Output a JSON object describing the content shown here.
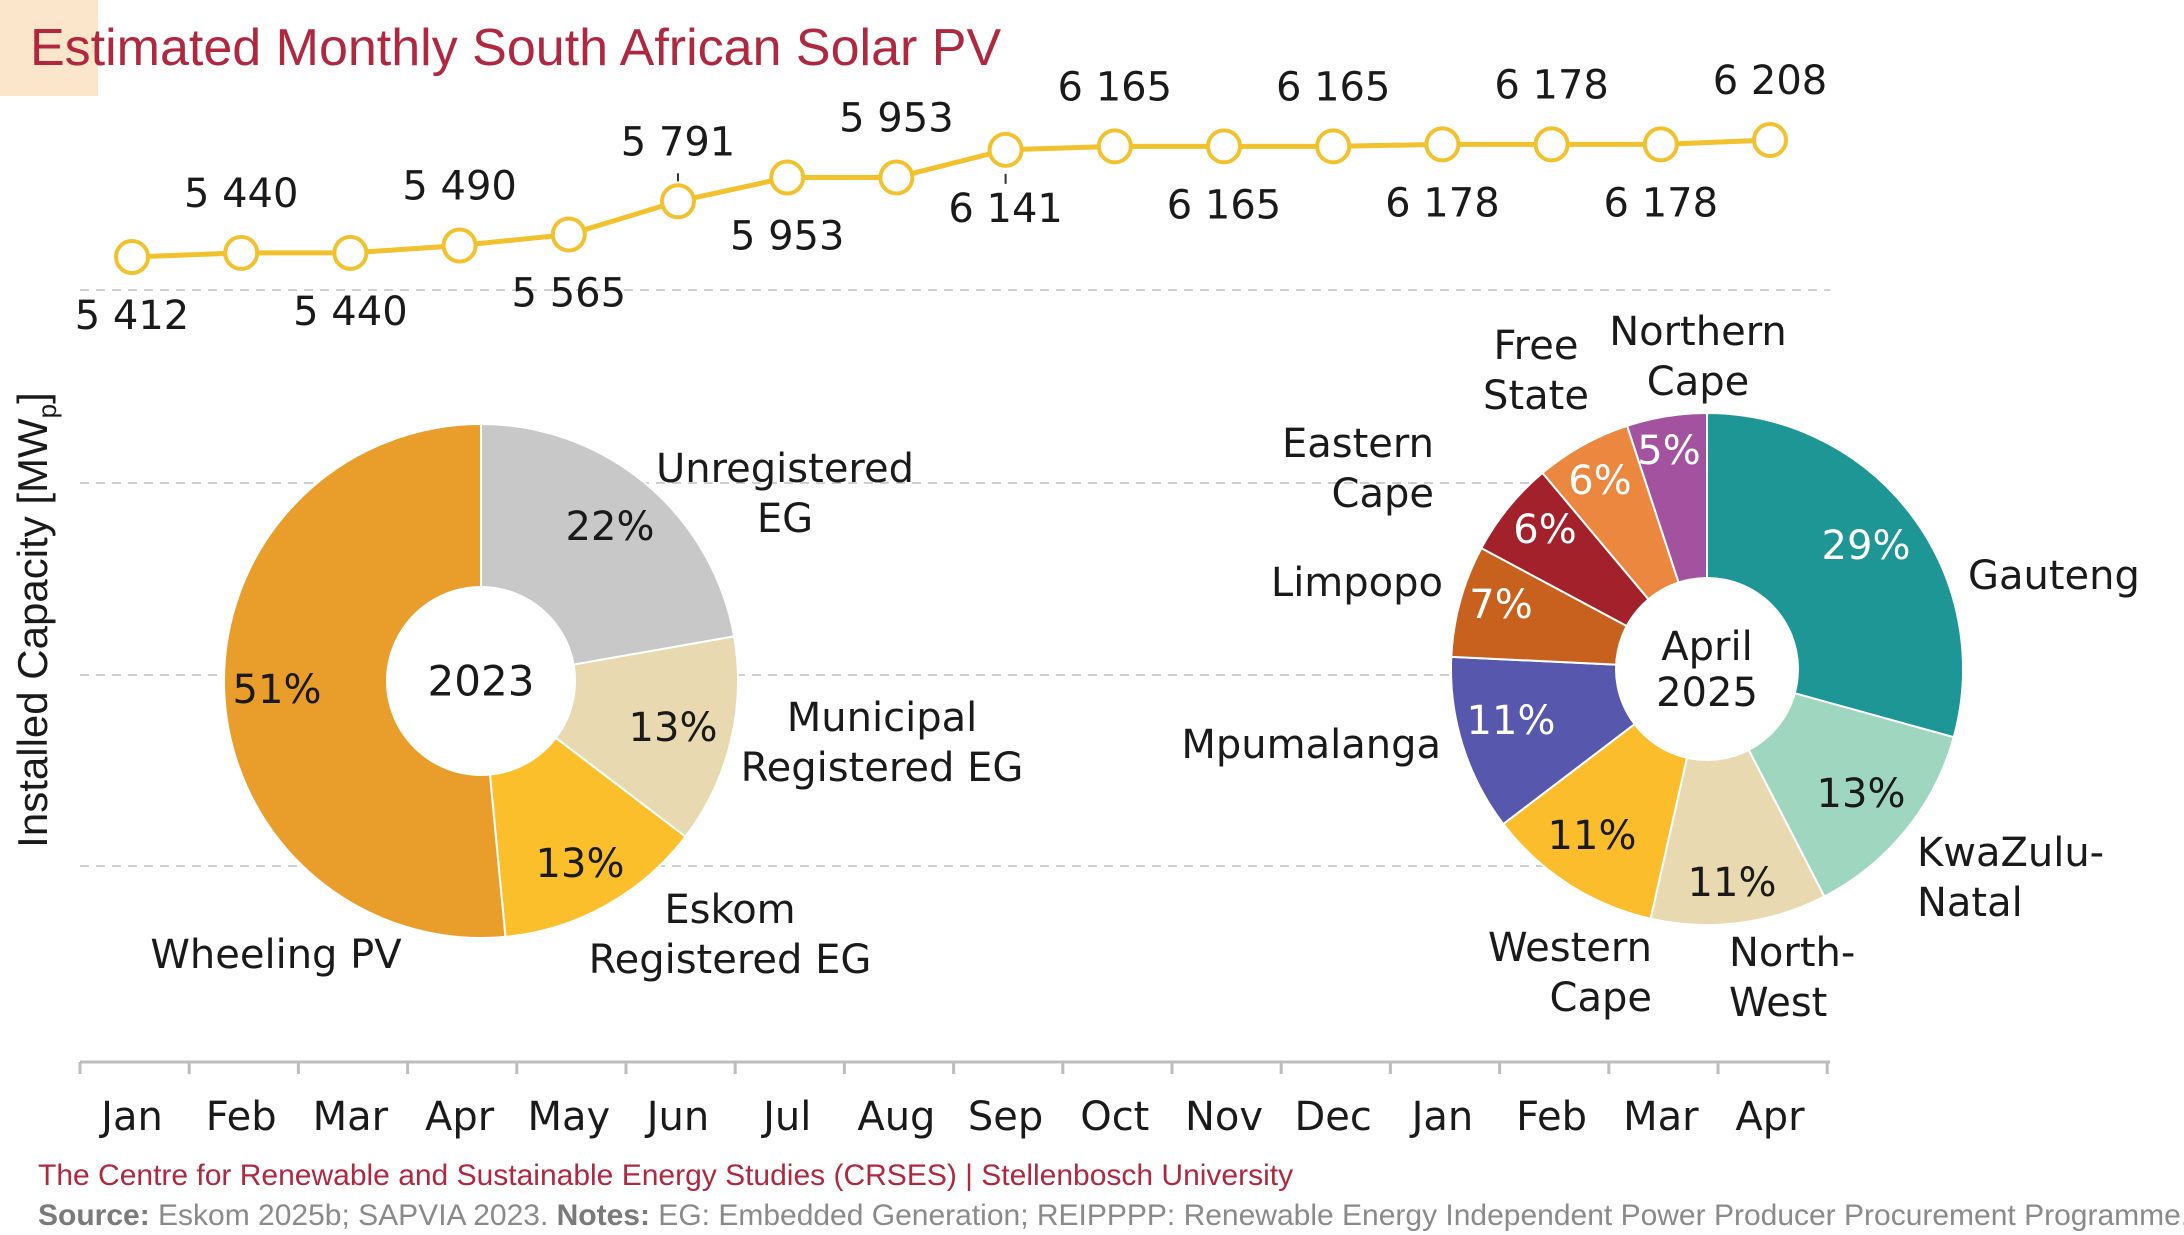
{
  "title": "Estimated Monthly South African Solar PV",
  "ylabel_main": "Installed Capacity [MW",
  "ylabel_sub": "p",
  "ylabel_end": "]",
  "footer": {
    "org": "The Centre for Renewable and Sustainable Energy Studies (CRSES) | Stellenbosch University",
    "source_label": "Source:",
    "source_text": " Eskom 2025b; SAPVIA 2023. ",
    "notes_label": "Notes:",
    "notes_text": " EG: Embedded Generation; REIPPPP: Renewable Energy Independent Power Producer Procurement Programme."
  },
  "chart_data": [
    {
      "type": "line",
      "categories": [
        "Jan",
        "Feb",
        "Mar",
        "Apr",
        "May",
        "Jun",
        "Jul",
        "Aug",
        "Sep",
        "Oct",
        "Nov",
        "Dec",
        "Jan",
        "Feb",
        "Mar",
        "Apr"
      ],
      "values": [
        5412,
        5440,
        5440,
        5490,
        5565,
        5791,
        5953,
        5953,
        6141,
        6165,
        6165,
        6165,
        6178,
        6178,
        6178,
        6208
      ],
      "data_labels": [
        "5 412",
        "5 440",
        "5 440",
        "5 490",
        "5 565",
        "5 791",
        "5 953",
        "5 953",
        "6 141",
        "6 165",
        "6 165",
        "6 165",
        "6 178",
        "6 178",
        "6 178",
        "6 208"
      ],
      "label_position": [
        "below",
        "above",
        "below",
        "above",
        "below",
        "above",
        "below",
        "above",
        "below",
        "above",
        "below",
        "above",
        "below",
        "above",
        "below",
        "above"
      ],
      "ylabel": "Installed Capacity [MWp]",
      "color": "#f2c12e",
      "grid": true
    },
    {
      "type": "pie",
      "center_label": "2023",
      "slices": [
        {
          "label": "Unregistered EG",
          "value": 22,
          "value_label": "22%",
          "color": "#c8c8c8"
        },
        {
          "label": "Municipal Registered EG",
          "value": 13,
          "value_label": "13%",
          "color": "#e8d9b0"
        },
        {
          "label": "Eskom Registered EG",
          "value": 13,
          "value_label": "13%",
          "color": "#fbbf2c"
        },
        {
          "label": "Wheeling PV",
          "value": 51,
          "value_label": "51%",
          "color": "#e99d2a"
        }
      ]
    },
    {
      "type": "pie",
      "center_label": "April 2025",
      "slices": [
        {
          "label": "Gauteng",
          "value": 29,
          "value_label": "29%",
          "color": "#1e9696"
        },
        {
          "label": "KwaZulu-Natal",
          "value": 13,
          "value_label": "13%",
          "color": "#9fd6bf"
        },
        {
          "label": "North-West",
          "value": 11,
          "value_label": "11%",
          "color": "#e9d9b0"
        },
        {
          "label": "Western Cape",
          "value": 11,
          "value_label": "11%",
          "color": "#fbbd2c"
        },
        {
          "label": "Mpumalanga",
          "value": 11,
          "value_label": "11%",
          "color": "#5757ad"
        },
        {
          "label": "Limpopo",
          "value": 7,
          "value_label": "7%",
          "color": "#c8611d"
        },
        {
          "label": "Eastern Cape",
          "value": 6,
          "value_label": "6%",
          "color": "#a3212a"
        },
        {
          "label": "Free State",
          "value": 6,
          "value_label": "6%",
          "color": "#ec8740"
        },
        {
          "label": "Northern Cape",
          "value": 5,
          "value_label": "5%",
          "color": "#a352a0"
        }
      ]
    }
  ]
}
